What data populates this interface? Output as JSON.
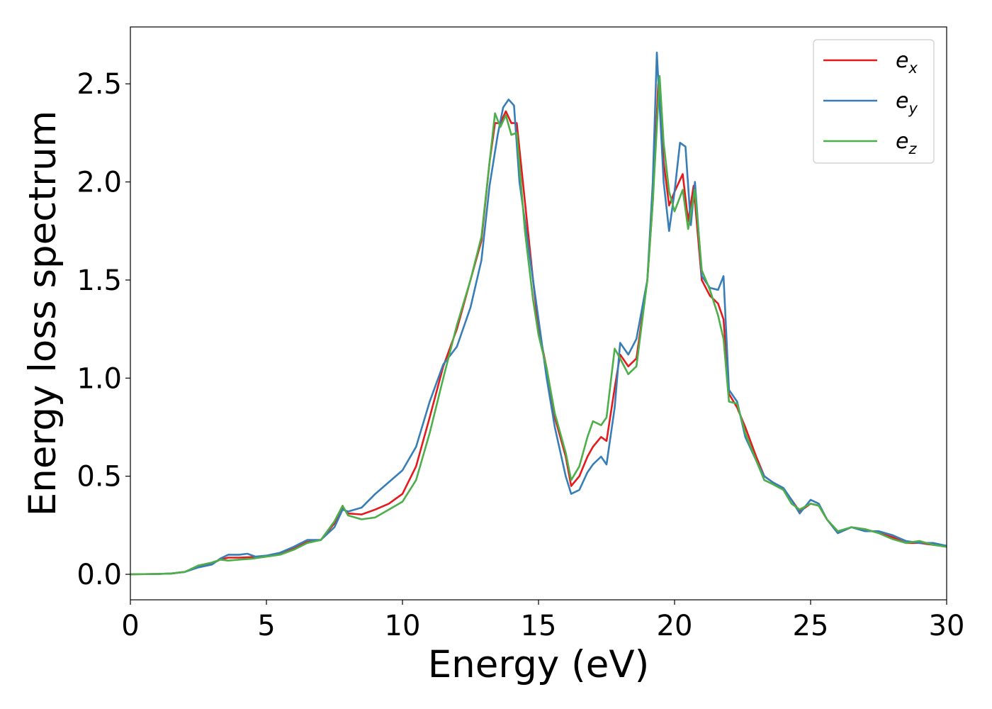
{
  "chart_data": {
    "type": "line",
    "title": "",
    "xlabel": "Energy (eV)",
    "ylabel": "Energy loss spectrum",
    "xlim": [
      0,
      30
    ],
    "ylim": [
      -0.13,
      2.79
    ],
    "xticks": [
      "0",
      "5",
      "10",
      "15",
      "20",
      "25",
      "30"
    ],
    "yticks": [
      "0.0",
      "0.5",
      "1.0",
      "1.5",
      "2.0",
      "2.5"
    ],
    "grid": false,
    "legend_position": "top-right",
    "series": [
      {
        "name": "e",
        "subscript": "x",
        "color": "#e41a1c",
        "points": [
          [
            0,
            0
          ],
          [
            1,
            0.002
          ],
          [
            1.5,
            0.004
          ],
          [
            2,
            0.012
          ],
          [
            2.5,
            0.04
          ],
          [
            3,
            0.055
          ],
          [
            3.3,
            0.075
          ],
          [
            3.6,
            0.085
          ],
          [
            4,
            0.085
          ],
          [
            4.5,
            0.088
          ],
          [
            5,
            0.092
          ],
          [
            5.5,
            0.105
          ],
          [
            6,
            0.13
          ],
          [
            6.5,
            0.165
          ],
          [
            7,
            0.175
          ],
          [
            7.5,
            0.26
          ],
          [
            7.8,
            0.34
          ],
          [
            8,
            0.31
          ],
          [
            8.5,
            0.305
          ],
          [
            9,
            0.33
          ],
          [
            9.5,
            0.36
          ],
          [
            10,
            0.41
          ],
          [
            10.5,
            0.55
          ],
          [
            11,
            0.8
          ],
          [
            11.5,
            1.06
          ],
          [
            12,
            1.25
          ],
          [
            12.5,
            1.5
          ],
          [
            12.9,
            1.7
          ],
          [
            13.2,
            2.1
          ],
          [
            13.4,
            2.3
          ],
          [
            13.6,
            2.3
          ],
          [
            13.8,
            2.36
          ],
          [
            14,
            2.3
          ],
          [
            14.2,
            2.3
          ],
          [
            14.5,
            1.9
          ],
          [
            14.8,
            1.5
          ],
          [
            15,
            1.25
          ],
          [
            15.3,
            1.05
          ],
          [
            15.6,
            0.8
          ],
          [
            16,
            0.6
          ],
          [
            16.2,
            0.45
          ],
          [
            16.5,
            0.5
          ],
          [
            16.8,
            0.6
          ],
          [
            17,
            0.65
          ],
          [
            17.3,
            0.7
          ],
          [
            17.5,
            0.68
          ],
          [
            17.8,
            0.95
          ],
          [
            18,
            1.12
          ],
          [
            18.3,
            1.06
          ],
          [
            18.6,
            1.1
          ],
          [
            19,
            1.5
          ],
          [
            19.2,
            1.9
          ],
          [
            19.4,
            2.5
          ],
          [
            19.6,
            2.1
          ],
          [
            19.8,
            1.88
          ],
          [
            20,
            1.95
          ],
          [
            20.3,
            2.04
          ],
          [
            20.5,
            1.8
          ],
          [
            20.7,
            1.98
          ],
          [
            21,
            1.5
          ],
          [
            21.3,
            1.42
          ],
          [
            21.6,
            1.38
          ],
          [
            21.8,
            1.3
          ],
          [
            22,
            0.92
          ],
          [
            22.3,
            0.85
          ],
          [
            22.6,
            0.75
          ],
          [
            23,
            0.6
          ],
          [
            23.3,
            0.5
          ],
          [
            23.6,
            0.47
          ],
          [
            24,
            0.43
          ],
          [
            24.3,
            0.38
          ],
          [
            24.6,
            0.32
          ],
          [
            25,
            0.36
          ],
          [
            25.3,
            0.35
          ],
          [
            25.6,
            0.28
          ],
          [
            26,
            0.21
          ],
          [
            26.5,
            0.24
          ],
          [
            27,
            0.23
          ],
          [
            27.5,
            0.21
          ],
          [
            28,
            0.19
          ],
          [
            28.5,
            0.16
          ],
          [
            29,
            0.16
          ],
          [
            29.5,
            0.15
          ],
          [
            30,
            0.145
          ]
        ]
      },
      {
        "name": "e",
        "subscript": "y",
        "color": "#377eb8",
        "points": [
          [
            0,
            0
          ],
          [
            1,
            0.002
          ],
          [
            1.5,
            0.004
          ],
          [
            2,
            0.012
          ],
          [
            2.5,
            0.035
          ],
          [
            3,
            0.05
          ],
          [
            3.3,
            0.08
          ],
          [
            3.6,
            0.1
          ],
          [
            4,
            0.1
          ],
          [
            4.3,
            0.105
          ],
          [
            4.6,
            0.09
          ],
          [
            5,
            0.095
          ],
          [
            5.5,
            0.11
          ],
          [
            6,
            0.14
          ],
          [
            6.5,
            0.175
          ],
          [
            7,
            0.175
          ],
          [
            7.5,
            0.24
          ],
          [
            7.8,
            0.33
          ],
          [
            8,
            0.32
          ],
          [
            8.5,
            0.34
          ],
          [
            9,
            0.41
          ],
          [
            9.5,
            0.47
          ],
          [
            10,
            0.53
          ],
          [
            10.5,
            0.65
          ],
          [
            11,
            0.88
          ],
          [
            11.5,
            1.07
          ],
          [
            12,
            1.16
          ],
          [
            12.5,
            1.36
          ],
          [
            12.9,
            1.6
          ],
          [
            13.2,
            1.98
          ],
          [
            13.5,
            2.24
          ],
          [
            13.7,
            2.38
          ],
          [
            13.9,
            2.42
          ],
          [
            14.1,
            2.39
          ],
          [
            14.3,
            2.0
          ],
          [
            14.6,
            1.7
          ],
          [
            15,
            1.3
          ],
          [
            15.3,
            1.0
          ],
          [
            15.6,
            0.75
          ],
          [
            16,
            0.5
          ],
          [
            16.2,
            0.41
          ],
          [
            16.5,
            0.43
          ],
          [
            16.8,
            0.52
          ],
          [
            17,
            0.56
          ],
          [
            17.3,
            0.6
          ],
          [
            17.5,
            0.56
          ],
          [
            17.8,
            0.85
          ],
          [
            18,
            1.18
          ],
          [
            18.3,
            1.12
          ],
          [
            18.6,
            1.2
          ],
          [
            19,
            1.5
          ],
          [
            19.2,
            2.0
          ],
          [
            19.35,
            2.66
          ],
          [
            19.6,
            2.0
          ],
          [
            19.8,
            1.75
          ],
          [
            20,
            1.95
          ],
          [
            20.2,
            2.2
          ],
          [
            20.4,
            2.18
          ],
          [
            20.6,
            1.78
          ],
          [
            20.75,
            2.0
          ],
          [
            21,
            1.52
          ],
          [
            21.3,
            1.46
          ],
          [
            21.6,
            1.45
          ],
          [
            21.8,
            1.52
          ],
          [
            22,
            0.94
          ],
          [
            22.3,
            0.88
          ],
          [
            22.6,
            0.7
          ],
          [
            23,
            0.58
          ],
          [
            23.3,
            0.5
          ],
          [
            23.6,
            0.47
          ],
          [
            24,
            0.44
          ],
          [
            24.3,
            0.38
          ],
          [
            24.6,
            0.31
          ],
          [
            25,
            0.38
          ],
          [
            25.3,
            0.36
          ],
          [
            25.6,
            0.28
          ],
          [
            26,
            0.21
          ],
          [
            26.5,
            0.24
          ],
          [
            27,
            0.22
          ],
          [
            27.5,
            0.22
          ],
          [
            28,
            0.2
          ],
          [
            28.5,
            0.17
          ],
          [
            29,
            0.16
          ],
          [
            29.5,
            0.16
          ],
          [
            30,
            0.145
          ]
        ]
      },
      {
        "name": "e",
        "subscript": "z",
        "color": "#4daf4a",
        "points": [
          [
            0,
            0
          ],
          [
            1,
            0.002
          ],
          [
            1.5,
            0.004
          ],
          [
            2,
            0.012
          ],
          [
            2.5,
            0.045
          ],
          [
            3,
            0.06
          ],
          [
            3.3,
            0.075
          ],
          [
            3.6,
            0.07
          ],
          [
            4,
            0.075
          ],
          [
            4.5,
            0.08
          ],
          [
            5,
            0.09
          ],
          [
            5.5,
            0.1
          ],
          [
            6,
            0.125
          ],
          [
            6.5,
            0.16
          ],
          [
            7,
            0.175
          ],
          [
            7.5,
            0.27
          ],
          [
            7.8,
            0.35
          ],
          [
            8,
            0.3
          ],
          [
            8.5,
            0.28
          ],
          [
            9,
            0.29
          ],
          [
            9.5,
            0.33
          ],
          [
            10,
            0.37
          ],
          [
            10.5,
            0.48
          ],
          [
            11,
            0.72
          ],
          [
            11.5,
            1.0
          ],
          [
            12,
            1.27
          ],
          [
            12.5,
            1.5
          ],
          [
            12.9,
            1.72
          ],
          [
            13.2,
            2.1
          ],
          [
            13.4,
            2.35
          ],
          [
            13.6,
            2.28
          ],
          [
            13.8,
            2.34
          ],
          [
            14,
            2.24
          ],
          [
            14.2,
            2.25
          ],
          [
            14.5,
            1.75
          ],
          [
            14.8,
            1.4
          ],
          [
            15,
            1.22
          ],
          [
            15.3,
            1.05
          ],
          [
            15.6,
            0.82
          ],
          [
            16,
            0.62
          ],
          [
            16.2,
            0.48
          ],
          [
            16.5,
            0.55
          ],
          [
            16.8,
            0.7
          ],
          [
            17,
            0.78
          ],
          [
            17.3,
            0.76
          ],
          [
            17.5,
            0.8
          ],
          [
            17.8,
            1.15
          ],
          [
            18,
            1.1
          ],
          [
            18.3,
            1.02
          ],
          [
            18.6,
            1.06
          ],
          [
            19,
            1.5
          ],
          [
            19.2,
            1.9
          ],
          [
            19.45,
            2.54
          ],
          [
            19.6,
            2.2
          ],
          [
            19.8,
            1.95
          ],
          [
            20,
            1.85
          ],
          [
            20.3,
            1.96
          ],
          [
            20.5,
            1.76
          ],
          [
            20.75,
            1.96
          ],
          [
            21,
            1.55
          ],
          [
            21.3,
            1.45
          ],
          [
            21.6,
            1.32
          ],
          [
            21.8,
            1.2
          ],
          [
            22,
            0.88
          ],
          [
            22.3,
            0.87
          ],
          [
            22.6,
            0.72
          ],
          [
            23,
            0.58
          ],
          [
            23.3,
            0.48
          ],
          [
            23.6,
            0.46
          ],
          [
            24,
            0.43
          ],
          [
            24.3,
            0.36
          ],
          [
            24.6,
            0.33
          ],
          [
            25,
            0.36
          ],
          [
            25.3,
            0.35
          ],
          [
            25.6,
            0.28
          ],
          [
            26,
            0.22
          ],
          [
            26.5,
            0.24
          ],
          [
            27,
            0.23
          ],
          [
            27.5,
            0.21
          ],
          [
            28,
            0.18
          ],
          [
            28.5,
            0.16
          ],
          [
            29,
            0.17
          ],
          [
            29.5,
            0.15
          ],
          [
            30,
            0.14
          ]
        ]
      }
    ]
  }
}
